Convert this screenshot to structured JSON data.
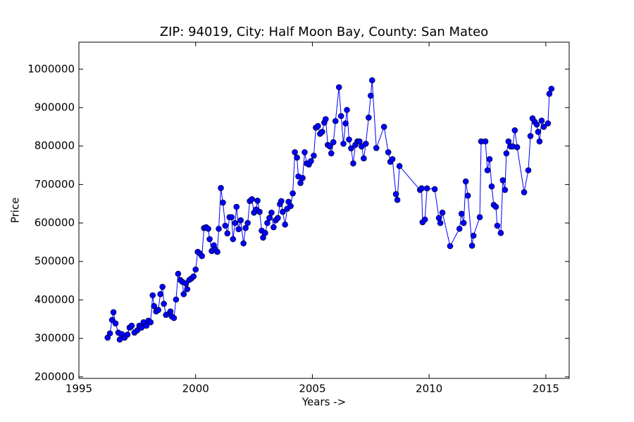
{
  "chart_data": {
    "type": "line",
    "title": "ZIP: 94019, City: Half Moon Bay, County: San Mateo",
    "x_label": "Years ->",
    "y_label": "Price",
    "color": "#0000ff",
    "marker": "circle",
    "xlim": [
      1995,
      2016
    ],
    "xticks": [
      1995,
      2000,
      2005,
      2010,
      2015
    ],
    "ylim": [
      196000,
      1070000
    ],
    "yticks": [
      200000,
      300000,
      400000,
      500000,
      600000,
      700000,
      800000,
      900000,
      1000000
    ],
    "x": [
      1996.23,
      1996.33,
      1996.42,
      1996.48,
      1996.57,
      1996.69,
      1996.75,
      1996.84,
      1996.96,
      1997.08,
      1997.17,
      1997.26,
      1997.38,
      1997.5,
      1997.59,
      1997.68,
      1997.77,
      1997.89,
      1997.98,
      1998.07,
      1998.16,
      1998.22,
      1998.31,
      1998.4,
      1998.49,
      1998.58,
      1998.64,
      1998.73,
      1998.86,
      1998.92,
      1998.98,
      1999.07,
      1999.16,
      1999.25,
      1999.34,
      1999.43,
      1999.49,
      1999.58,
      1999.64,
      1999.73,
      1999.82,
      1999.91,
      2000.0,
      2000.09,
      2000.18,
      2000.27,
      2000.36,
      2000.45,
      2000.54,
      2000.6,
      2000.69,
      2000.78,
      2000.84,
      2000.93,
      2000.99,
      2001.08,
      2001.17,
      2001.27,
      2001.36,
      2001.45,
      2001.54,
      2001.6,
      2001.69,
      2001.75,
      2001.84,
      2001.93,
      2002.05,
      2002.14,
      2002.23,
      2002.32,
      2002.41,
      2002.5,
      2002.59,
      2002.65,
      2002.74,
      2002.83,
      2002.89,
      2002.98,
      2003.07,
      2003.16,
      2003.25,
      2003.34,
      2003.43,
      2003.52,
      2003.61,
      2003.67,
      2003.73,
      2003.83,
      2003.92,
      2003.98,
      2004.07,
      2004.16,
      2004.25,
      2004.34,
      2004.4,
      2004.49,
      2004.58,
      2004.67,
      2004.76,
      2004.85,
      2004.94,
      2005.06,
      2005.15,
      2005.24,
      2005.33,
      2005.42,
      2005.51,
      2005.57,
      2005.66,
      2005.75,
      2005.81,
      2005.9,
      2005.99,
      2006.14,
      2006.23,
      2006.33,
      2006.42,
      2006.48,
      2006.57,
      2006.66,
      2006.75,
      2006.84,
      2006.93,
      2007.02,
      2007.11,
      2007.2,
      2007.29,
      2007.41,
      2007.5,
      2007.56,
      2007.74,
      2008.07,
      2008.25,
      2008.34,
      2008.43,
      2008.58,
      2008.64,
      2008.73,
      2009.61,
      2009.68,
      2009.72,
      2009.82,
      2009.91,
      2010.24,
      2010.42,
      2010.48,
      2010.57,
      2010.9,
      2011.3,
      2011.39,
      2011.48,
      2011.57,
      2011.66,
      2011.84,
      2011.9,
      2012.17,
      2012.23,
      2012.41,
      2012.5,
      2012.59,
      2012.68,
      2012.77,
      2012.86,
      2012.92,
      2013.07,
      2013.16,
      2013.25,
      2013.31,
      2013.4,
      2013.49,
      2013.58,
      2013.67,
      2013.77,
      2014.07,
      2014.25,
      2014.34,
      2014.43,
      2014.52,
      2014.61,
      2014.67,
      2014.73,
      2014.82,
      2014.91,
      2015.09,
      2015.15,
      2015.24
    ],
    "values": [
      302000,
      313000,
      348000,
      368000,
      339000,
      315000,
      297000,
      311000,
      302000,
      310000,
      328000,
      333000,
      315000,
      321000,
      333000,
      328000,
      342000,
      333000,
      346000,
      342000,
      412000,
      384000,
      370000,
      374000,
      415000,
      434000,
      390000,
      361000,
      364000,
      370000,
      357000,
      353000,
      401000,
      468000,
      452000,
      447000,
      415000,
      443000,
      428000,
      452000,
      456000,
      461000,
      479000,
      525000,
      521000,
      514000,
      587000,
      589000,
      585000,
      558000,
      527000,
      542000,
      531000,
      525000,
      585000,
      691000,
      653000,
      593000,
      573000,
      615000,
      615000,
      558000,
      600000,
      642000,
      584000,
      607000,
      547000,
      587000,
      600000,
      657000,
      662000,
      627000,
      635000,
      658000,
      629000,
      580000,
      562000,
      574000,
      600000,
      613000,
      627000,
      589000,
      607000,
      613000,
      649000,
      657000,
      629000,
      596000,
      637000,
      655000,
      644000,
      677000,
      784000,
      770000,
      721000,
      704000,
      717000,
      784000,
      755000,
      752000,
      761000,
      775000,
      848000,
      852000,
      832000,
      837000,
      861000,
      870000,
      803000,
      799000,
      781000,
      810000,
      865000,
      953000,
      878000,
      806000,
      859000,
      894000,
      817000,
      794000,
      755000,
      803000,
      812000,
      812000,
      799000,
      768000,
      806000,
      874000,
      931000,
      971000,
      795000,
      850000,
      784000,
      759000,
      766000,
      675000,
      660000,
      748000,
      686000,
      690000,
      602000,
      609000,
      690000,
      688000,
      613000,
      600000,
      627000,
      540000,
      585000,
      624000,
      600000,
      708000,
      671000,
      541000,
      567000,
      615000,
      812000,
      812000,
      737000,
      766000,
      695000,
      647000,
      642000,
      593000,
      574000,
      711000,
      686000,
      781000,
      812000,
      799000,
      799000,
      841000,
      797000,
      680000,
      737000,
      826000,
      872000,
      863000,
      856000,
      837000,
      812000,
      866000,
      850000,
      859000,
      936000,
      949000
    ]
  }
}
